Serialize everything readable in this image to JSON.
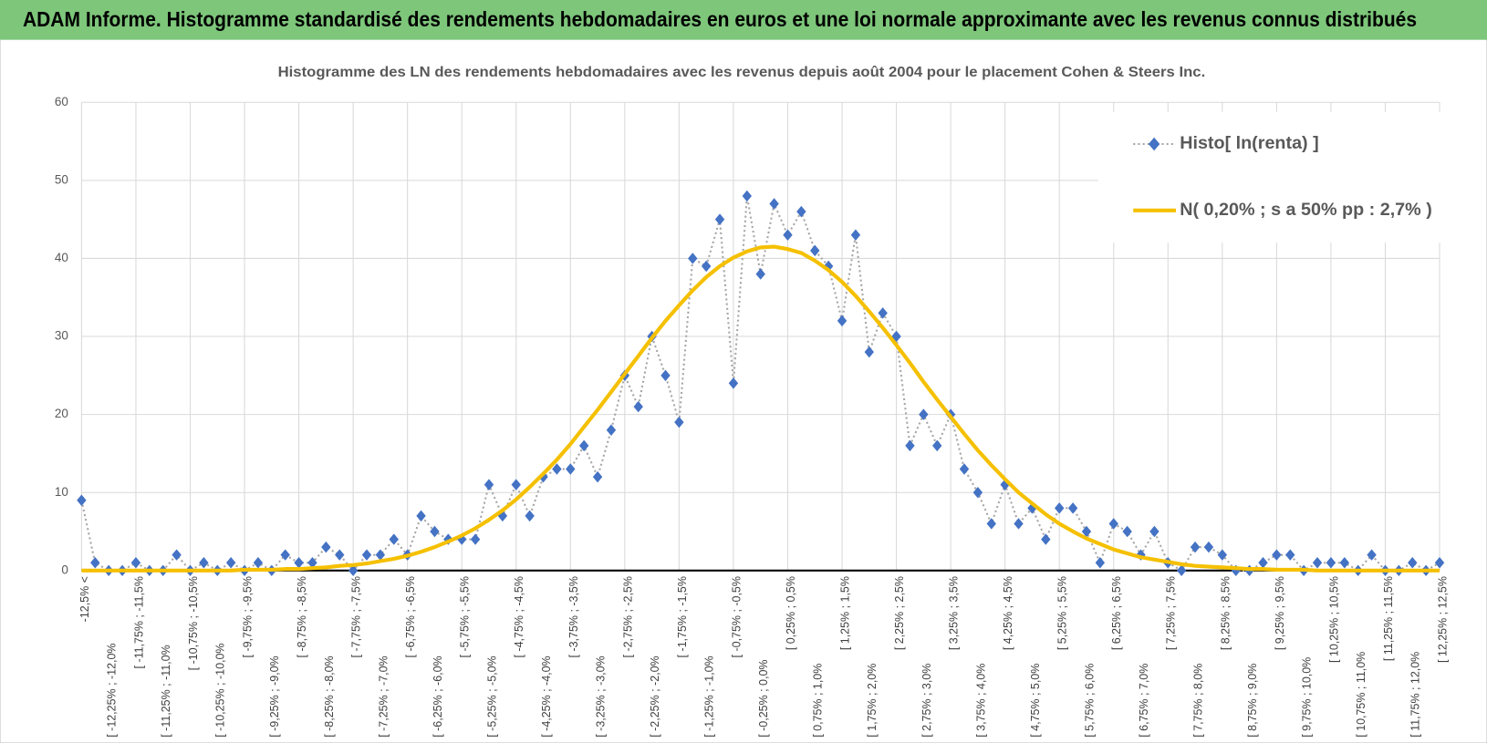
{
  "header": {
    "title": "ADAM Informe. Histogramme standardisé des rendements hebdomadaires en euros et une loi normale approximante avec les revenus connus distribués"
  },
  "chart_data": {
    "type": "line",
    "title": "Histogramme des LN des rendements hebdomadaires avec les revenus depuis août 2004 pour le placement Cohen & Steers Inc.",
    "categories": [
      "-12,5% <",
      null,
      "[ -12,25% ; -12,0%",
      null,
      "[ -11,75% ; -11,5%",
      null,
      "[ -11,25% ; -11,0%",
      null,
      "[ -10,75% ; -10,5%",
      null,
      "[ -10,25% ; -10,0%",
      null,
      "[ -9,75% ; -9,5%",
      null,
      "[ -9,25% ; -9,0%",
      null,
      "[ -8,75% ; -8,5%",
      null,
      "[ -8,25% ; -8,0%",
      null,
      "[ -7,75% ; -7,5%",
      null,
      "[ -7,25% ; -7,0%",
      null,
      "[ -6,75% ; -6,5%",
      null,
      "[ -6,25% ; -6,0%",
      null,
      "[ -5,75% ; -5,5%",
      null,
      "[ -5,25% ; -5,0%",
      null,
      "[ -4,75% ; -4,5%",
      null,
      "[ -4,25% ; -4,0%",
      null,
      "[ -3,75% ; -3,5%",
      null,
      "[ -3,25% ; -3,0%",
      null,
      "[ -2,75% ; -2,5%",
      null,
      "[ -2,25% ; -2,0%",
      null,
      "[ -1,75% ; -1,5%",
      null,
      "[ -1,25% ; -1,0%",
      null,
      "[ -0,75% ; -0,5%",
      null,
      "[ -0,25% ; 0,0%",
      null,
      "[ 0,25% ; 0,5%",
      null,
      "[ 0,75% ; 1,0%",
      null,
      "[ 1,25% ; 1,5%",
      null,
      "[ 1,75% ; 2,0%",
      null,
      "[ 2,25% ; 2,5%",
      null,
      "[ 2,75% ; 3,0%",
      null,
      "[ 3,25% ; 3,5%",
      null,
      "[ 3,75% ; 4,0%",
      null,
      "[ 4,25% ; 4,5%",
      null,
      "[ 4,75% ; 5,0%",
      null,
      "[ 5,25% ; 5,5%",
      null,
      "[ 5,75% ; 6,0%",
      null,
      "[ 6,25% ; 6,5%",
      null,
      "[ 6,75% ; 7,0%",
      null,
      "[ 7,25% ; 7,5%",
      null,
      "[ 7,75% ; 8,0%",
      null,
      "[ 8,25% ; 8,5%",
      null,
      "[ 8,75% ; 9,0%",
      null,
      "[ 9,25% ; 9,5%",
      null,
      "[ 9,75% ; 10,0%",
      null,
      "[ 10,25% ; 10,5%",
      null,
      "[ 10,75% ; 11,0%",
      null,
      "[ 11,25% ; 11,5%",
      null,
      "[ 11,75% ; 12,0%",
      null,
      "[ 12,25% ; 12,5%"
    ],
    "series": [
      {
        "name": "Histo[ ln(renta) ]",
        "color": "#4472c4",
        "marker": "diamond",
        "line_color": "#a6a6a6",
        "values": [
          9,
          1,
          0,
          0,
          1,
          0,
          0,
          2,
          0,
          1,
          0,
          1,
          0,
          1,
          0,
          2,
          1,
          1,
          3,
          2,
          0,
          2,
          2,
          4,
          2,
          7,
          5,
          4,
          4,
          4,
          11,
          7,
          11,
          7,
          12,
          13,
          13,
          16,
          12,
          18,
          25,
          21,
          30,
          25,
          19,
          40,
          39,
          45,
          24,
          48,
          38,
          47,
          43,
          46,
          41,
          39,
          32,
          43,
          28,
          33,
          30,
          16,
          20,
          16,
          20,
          13,
          10,
          6,
          11,
          6,
          8,
          4,
          8,
          8,
          5,
          1,
          6,
          5,
          2,
          5,
          1,
          0,
          3,
          3,
          2,
          0,
          0,
          1,
          2,
          2,
          0,
          1,
          1,
          1,
          0,
          2,
          0,
          0,
          1,
          0,
          1
        ]
      },
      {
        "name": "N( 0,20% ; s a 50% pp : 2,7% )",
        "color": "#f5c000",
        "marker": "none",
        "values": [
          0,
          0,
          0,
          0,
          0,
          0,
          0,
          0,
          0,
          0,
          0,
          0,
          0.1,
          0.1,
          0.1,
          0.2,
          0.2,
          0.3,
          0.4,
          0.6,
          0.7,
          0.9,
          1.2,
          1.5,
          1.9,
          2.4,
          3,
          3.7,
          4.5,
          5.4,
          6.5,
          7.7,
          9.1,
          10.7,
          12.4,
          14.2,
          16.2,
          18.4,
          20.6,
          22.9,
          25.2,
          27.5,
          29.8,
          32,
          34,
          35.9,
          37.6,
          39,
          40.1,
          40.9,
          41.4,
          41.5,
          41.2,
          40.7,
          39.7,
          38.5,
          37,
          35.2,
          33.2,
          31.1,
          28.9,
          26.6,
          24.2,
          21.9,
          19.7,
          17.5,
          15.4,
          13.5,
          11.7,
          10,
          8.6,
          7.2,
          6,
          5,
          4.1,
          3.4,
          2.7,
          2.2,
          1.7,
          1.4,
          1.1,
          0.8,
          0.6,
          0.5,
          0.4,
          0.3,
          0.2,
          0.2,
          0.1,
          0.1,
          0.1,
          0,
          0,
          0,
          0,
          0,
          0,
          0,
          0,
          0,
          0
        ]
      }
    ],
    "ylim": [
      0,
      60
    ],
    "yticks": [
      0,
      10,
      20,
      30,
      40,
      50,
      60
    ],
    "grid": true,
    "legend": "upper right"
  }
}
